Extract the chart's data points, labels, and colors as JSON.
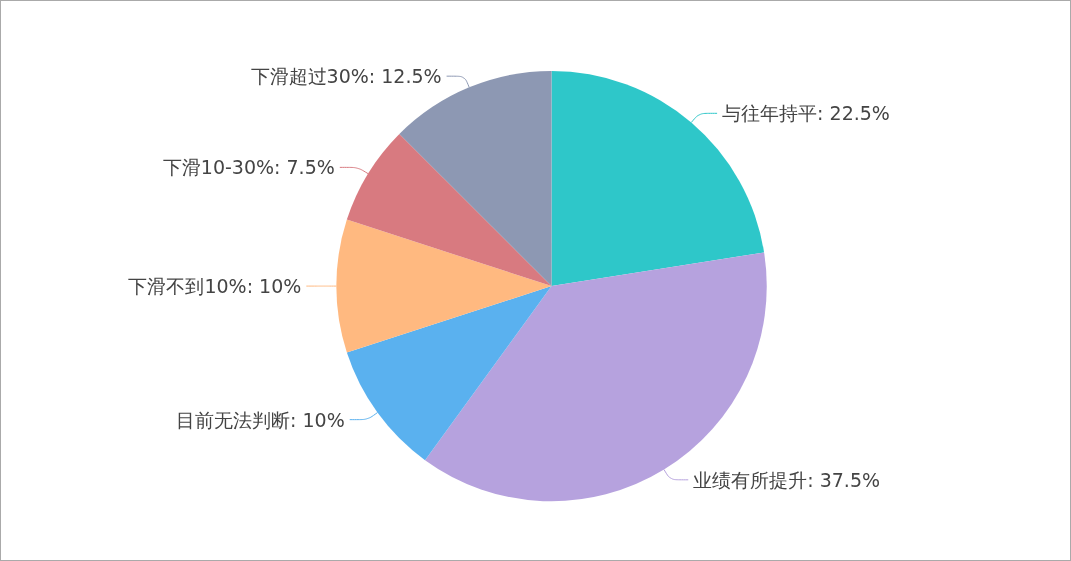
{
  "chart_data": {
    "type": "pie",
    "categories": [
      "与往年持平",
      "业绩有所提升",
      "目前无法判断",
      "下滑不到10%",
      "下滑10-30%",
      "下滑超过30%"
    ],
    "values": [
      22.5,
      37.5,
      10,
      10,
      7.5,
      12.5
    ],
    "value_labels": [
      "22.5%",
      "37.5%",
      "10%",
      "10%",
      "7.5%",
      "12.5%"
    ],
    "colors": [
      "#2ec7c9",
      "#b6a2de",
      "#5ab1ef",
      "#ffb980",
      "#d87a80",
      "#8d98b3"
    ],
    "legend": false
  }
}
